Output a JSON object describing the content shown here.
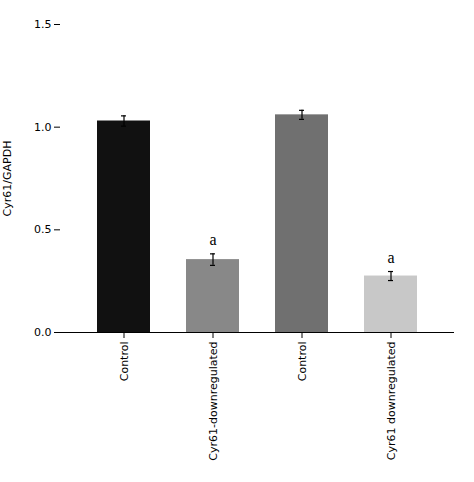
{
  "chart_data": {
    "type": "bar",
    "categories": [
      "Control",
      "Cyr61-downregulated",
      "Control",
      "Cyr61 downregulated"
    ],
    "values": [
      1.03,
      0.355,
      1.06,
      0.275
    ],
    "errors": [
      0.025,
      0.028,
      0.022,
      0.022
    ],
    "colors": [
      "#111111",
      "#888888",
      "#707070",
      "#c8c8c8"
    ],
    "sig_labels": [
      null,
      "a",
      null,
      "a"
    ],
    "ylabel": "Cyr61/GAPDH",
    "ylim": [
      0.0,
      1.5
    ],
    "yticks": [
      {
        "value": 0.0,
        "label": "0.0"
      },
      {
        "value": 0.5,
        "label": "0.5"
      },
      {
        "value": 1.0,
        "label": "1.0"
      },
      {
        "value": 1.5,
        "label": "1.5"
      }
    ],
    "grid": false
  }
}
